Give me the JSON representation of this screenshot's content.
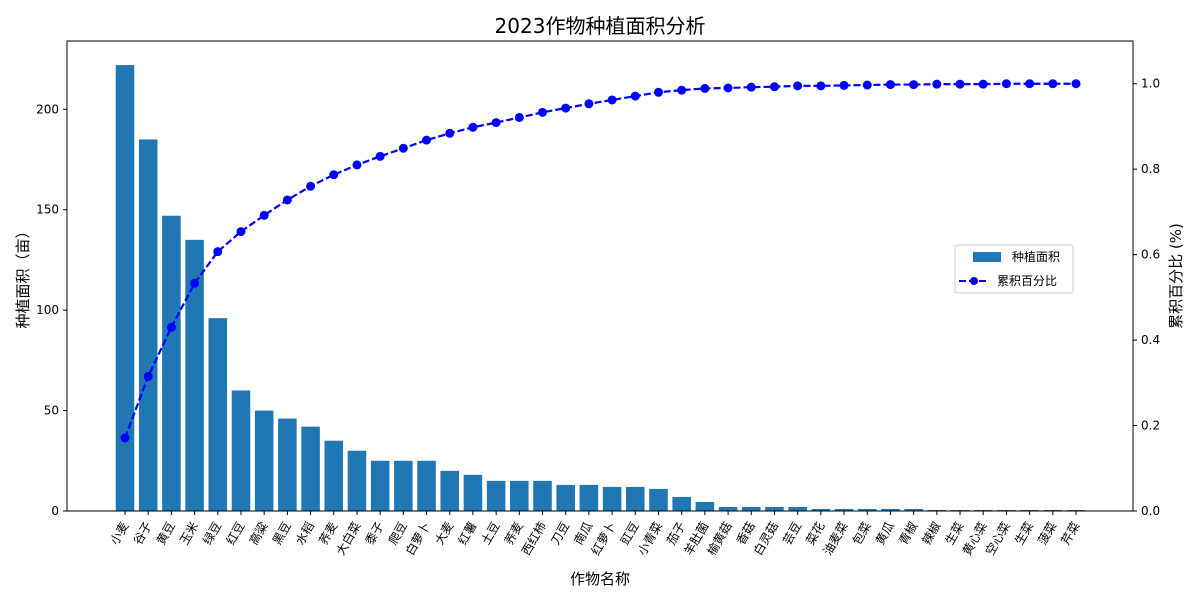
{
  "chart_data": {
    "type": "bar",
    "title": "2023作物种植面积分析",
    "xlabel": "作物名称",
    "ylabel": "种植面积（亩）",
    "y2label": "累积百分比 (%)",
    "categories": [
      "小麦",
      "谷子",
      "黄豆",
      "玉米",
      "绿豆",
      "红豆",
      "高粱",
      "黑豆",
      "水稻",
      "荞麦",
      "大白菜",
      "黍子",
      "爬豆",
      "白萝卜",
      "大麦",
      "红薯",
      "土豆",
      "荞麦",
      "西红柿",
      "刀豆",
      "南瓜",
      "红萝卜",
      "豇豆",
      "小青菜",
      "茄子",
      "羊肚菌",
      "榆黄菇",
      "香菇",
      "白灵菇",
      "芸豆",
      "菜花",
      "油麦菜",
      "包菜",
      "黄瓜",
      "青椒",
      "辣椒",
      "生菜",
      "黄心菜",
      "空心菜",
      "生菜",
      "菠菜",
      "芹菜"
    ],
    "ylim": [
      0,
      234
    ],
    "y2lim": [
      0,
      1.1
    ],
    "yticks": [
      0,
      50,
      100,
      150,
      200
    ],
    "y2ticks": [
      0.0,
      0.2,
      0.4,
      0.6,
      0.8,
      1.0
    ],
    "series": [
      {
        "name": "种植面积",
        "type": "bar",
        "axis": "left",
        "color": "#1f77b4",
        "values": [
          222,
          185,
          147,
          135,
          96,
          60,
          50,
          46,
          42,
          35,
          30,
          25,
          25,
          25,
          20,
          18,
          15,
          15,
          15,
          13,
          13,
          12,
          12,
          11,
          7,
          4.5,
          2,
          2,
          2,
          2,
          1,
          1,
          1,
          1,
          1,
          0.5,
          0.5,
          0.5,
          0.5,
          0.5,
          0.5,
          0.5
        ]
      },
      {
        "name": "累积百分比",
        "type": "line",
        "axis": "right",
        "color": "#0000ff",
        "values": [
          0.171,
          0.315,
          0.43,
          0.533,
          0.607,
          0.654,
          0.692,
          0.728,
          0.76,
          0.787,
          0.81,
          0.83,
          0.849,
          0.868,
          0.884,
          0.898,
          0.909,
          0.921,
          0.933,
          0.943,
          0.953,
          0.962,
          0.971,
          0.98,
          0.985,
          0.989,
          0.99,
          0.992,
          0.993,
          0.995,
          0.995,
          0.996,
          0.997,
          0.998,
          0.998,
          0.999,
          0.999,
          0.999,
          1.0,
          1.0,
          1.0,
          1.0
        ]
      }
    ],
    "legend_position": "right-center"
  }
}
